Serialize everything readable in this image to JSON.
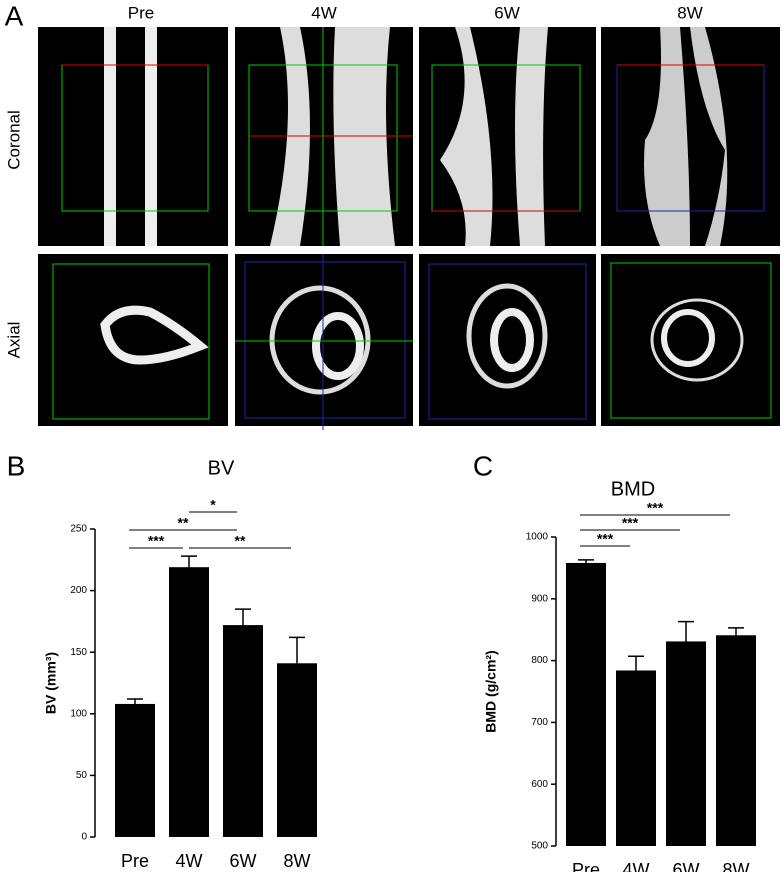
{
  "panel_labels": [
    "A",
    "B",
    "C"
  ],
  "images": {
    "columns": [
      "Pre",
      "4W",
      "6W",
      "8W"
    ],
    "rows": [
      "Coronal",
      "Axial"
    ]
  },
  "chart_data": [
    {
      "type": "bar",
      "title": "BV",
      "y_label": "BV (mm³)",
      "categories": [
        "Pre",
        "4W",
        "6W",
        "8W"
      ],
      "values": [
        108,
        219,
        172,
        141
      ],
      "errors": [
        4,
        9,
        13,
        21
      ],
      "color": "#000000",
      "ylim": [
        0,
        250
      ],
      "yticks": [
        0,
        50,
        100,
        150,
        200,
        250
      ],
      "comparisons": [
        {
          "label": "*",
          "groups": [
            "4W",
            "6W"
          ]
        },
        {
          "label": "**",
          "groups": [
            "Pre",
            "6W"
          ]
        },
        {
          "label": "***",
          "groups": [
            "Pre",
            "4W"
          ]
        },
        {
          "label": "**",
          "groups": [
            "4W",
            "8W"
          ]
        }
      ]
    },
    {
      "type": "bar",
      "title": "BMD",
      "y_label": "BMD (g/cm²)",
      "categories": [
        "Pre",
        "4W",
        "6W",
        "8W"
      ],
      "values": [
        958,
        784,
        831,
        841
      ],
      "errors": [
        5,
        23,
        32,
        12
      ],
      "color": "#000000",
      "ylim": [
        500,
        1000
      ],
      "yticks": [
        500,
        600,
        700,
        800,
        900,
        1000
      ],
      "comparisons": [
        {
          "label": "***",
          "groups": [
            "Pre",
            "8W"
          ]
        },
        {
          "label": "***",
          "groups": [
            "Pre",
            "6W"
          ]
        },
        {
          "label": "***",
          "groups": [
            "Pre",
            "4W"
          ]
        }
      ]
    }
  ]
}
